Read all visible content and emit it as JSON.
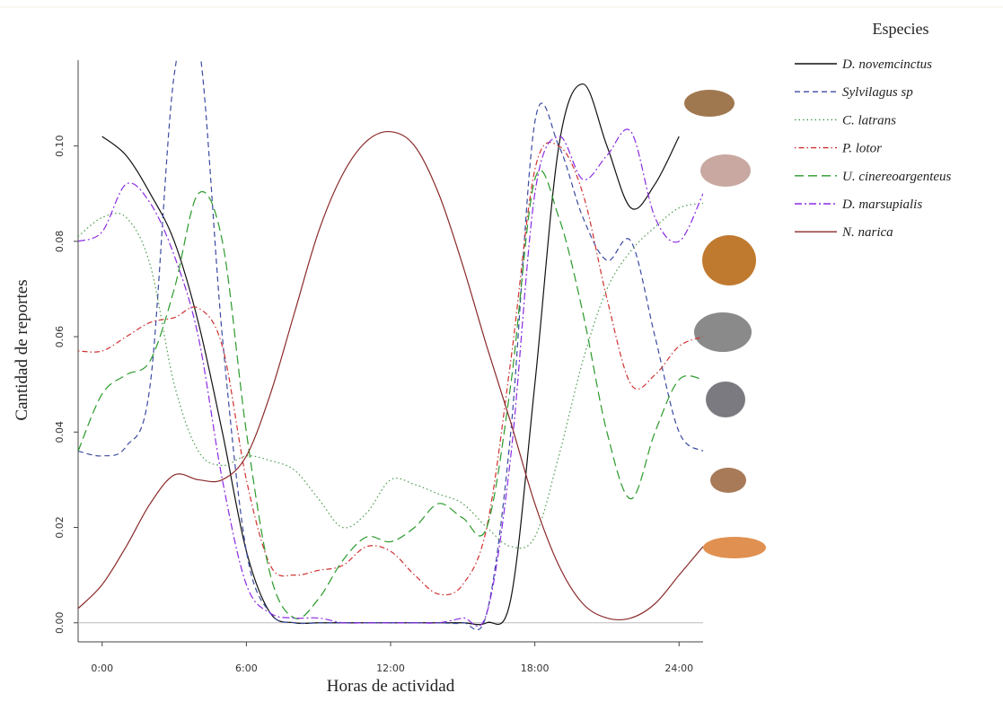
{
  "chart_data": {
    "type": "line",
    "x_label": "Horas de actividad",
    "y_label": "Cantidad de reportes",
    "legend_title": "Especies",
    "legend": "right",
    "xlim": [
      -1,
      25
    ],
    "ylim": [
      -0.004,
      0.118
    ],
    "xticks": [
      {
        "value": 0,
        "label": "0:00"
      },
      {
        "value": 6,
        "label": "6:00"
      },
      {
        "value": 12,
        "label": "12:00"
      },
      {
        "value": 18,
        "label": "18:00"
      },
      {
        "value": 24,
        "label": "24:00"
      }
    ],
    "yticks": [
      {
        "value": 0,
        "label": "0.00"
      },
      {
        "value": 0.02,
        "label": "0.02"
      },
      {
        "value": 0.04,
        "label": "0.04"
      },
      {
        "value": 0.06,
        "label": "0.06"
      },
      {
        "value": 0.08,
        "label": "0.08"
      },
      {
        "value": 0.1,
        "label": "0.10"
      }
    ],
    "x": [
      -1,
      0,
      1,
      2,
      3,
      4,
      5,
      6,
      7,
      8,
      9,
      10,
      11,
      12,
      13,
      14,
      15,
      16,
      17,
      18,
      19,
      20,
      21,
      22,
      23,
      24,
      25
    ],
    "series": [
      {
        "name": "D. novemcinctus",
        "color": "#111111",
        "dash": "solid",
        "values": [
          null,
          0.102,
          0.098,
          0.09,
          0.08,
          0.063,
          0.04,
          0.015,
          0.002,
          0,
          0,
          0,
          0,
          0,
          0,
          0,
          0,
          0,
          0.005,
          0.05,
          0.1,
          0.113,
          0.1,
          0.087,
          0.092,
          0.102,
          null
        ]
      },
      {
        "name": "Sylvilagus sp",
        "color": "#3b4ba0",
        "dash": "dashed",
        "values": [
          0.036,
          0.035,
          0.037,
          0.05,
          0.115,
          0.122,
          0.06,
          0.015,
          0.002,
          0,
          0,
          0,
          0,
          0,
          0,
          0,
          0,
          0.002,
          0.04,
          0.105,
          0.1,
          0.085,
          0.076,
          0.08,
          0.06,
          0.04,
          0.036
        ]
      },
      {
        "name": "C. latrans",
        "color": "#4a9a4a",
        "dash": "dotted",
        "values": [
          0.081,
          0.085,
          0.085,
          0.075,
          0.05,
          0.036,
          0.033,
          0.035,
          0.034,
          0.032,
          0.026,
          0.02,
          0.023,
          0.03,
          0.029,
          0.027,
          0.025,
          0.02,
          0.016,
          0.018,
          0.035,
          0.055,
          0.07,
          0.078,
          0.083,
          0.087,
          0.088
        ]
      },
      {
        "name": "P. lotor",
        "color": "#d03030",
        "dash": "dotdash",
        "values": [
          0.057,
          0.057,
          0.06,
          0.063,
          0.064,
          0.066,
          0.058,
          0.03,
          0.012,
          0.01,
          0.011,
          0.012,
          0.016,
          0.015,
          0.01,
          0.006,
          0.008,
          0.02,
          0.055,
          0.095,
          0.1,
          0.09,
          0.068,
          0.05,
          0.052,
          0.058,
          0.06
        ]
      },
      {
        "name": "U. cinereoargenteus",
        "color": "#2a9a2a",
        "dash": "longdash",
        "values": [
          0.036,
          0.048,
          0.052,
          0.055,
          0.07,
          0.09,
          0.08,
          0.04,
          0.01,
          0.001,
          0.005,
          0.013,
          0.018,
          0.017,
          0.02,
          0.025,
          0.022,
          0.02,
          0.05,
          0.093,
          0.085,
          0.065,
          0.04,
          0.026,
          0.04,
          0.051,
          0.051
        ]
      },
      {
        "name": "D. marsupialis",
        "color": "#8a2be2",
        "dash": "twodash",
        "values": [
          0.08,
          0.082,
          0.092,
          0.088,
          0.077,
          0.06,
          0.03,
          0.008,
          0.002,
          0.001,
          0.001,
          0,
          0,
          0,
          0,
          0,
          0.001,
          0.002,
          0.035,
          0.09,
          0.102,
          0.093,
          0.098,
          0.103,
          0.085,
          0.08,
          0.09
        ]
      },
      {
        "name": "N. narica",
        "color": "#8b2a2a",
        "dash": "solid",
        "values": [
          0.003,
          0.008,
          0.016,
          0.025,
          0.031,
          0.03,
          0.03,
          0.035,
          0.048,
          0.065,
          0.082,
          0.094,
          0.101,
          0.103,
          0.1,
          0.09,
          0.075,
          0.058,
          0.042,
          0.025,
          0.012,
          0.004,
          0.001,
          0.001,
          0.004,
          0.01,
          0.016
        ]
      }
    ]
  }
}
